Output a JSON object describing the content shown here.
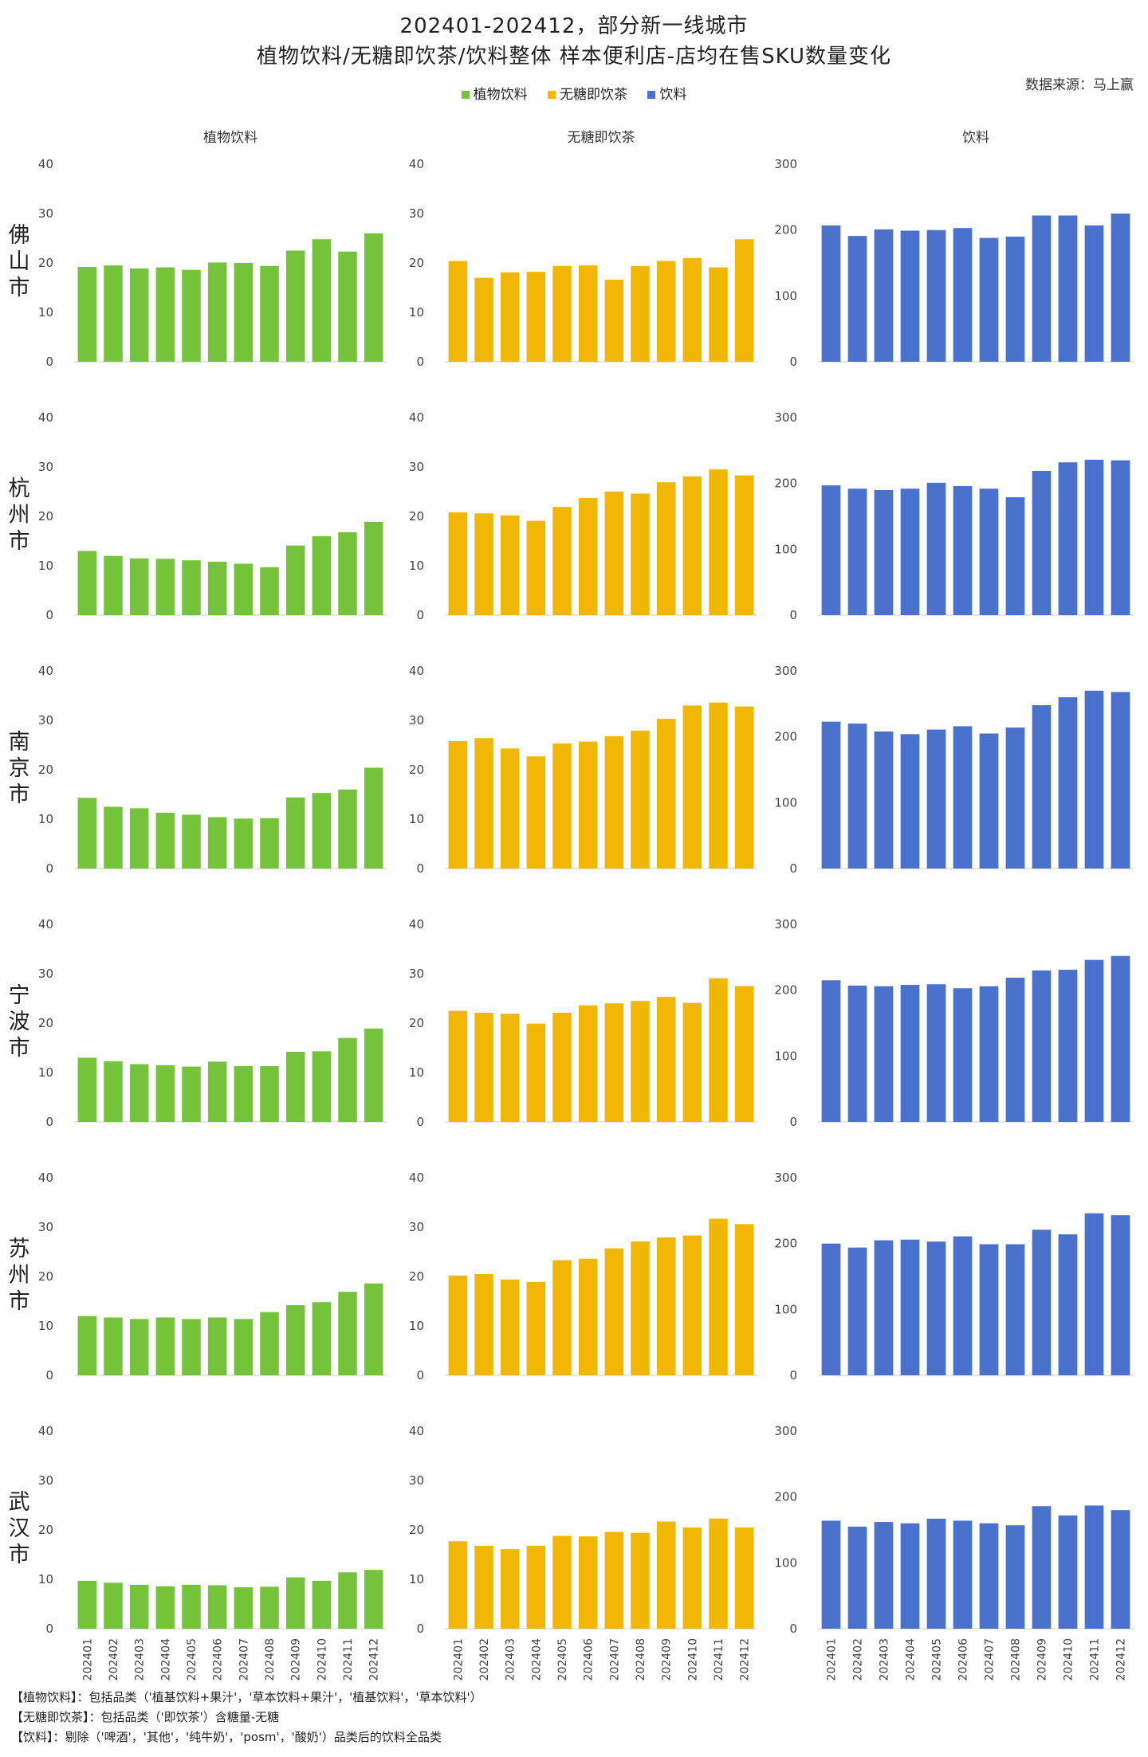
{
  "header": {
    "title_line1": "202401-202412，部分新一线城市",
    "title_line2": "植物饮料/无糖即饮茶/饮料整体 样本便利店-店均在售SKU数量变化",
    "source": "数据来源：马上赢"
  },
  "legend": [
    {
      "label": "植物饮料",
      "color": "#74C33B"
    },
    {
      "label": "无糖即饮茶",
      "color": "#F2B705"
    },
    {
      "label": "饮料",
      "color": "#4A72CC"
    }
  ],
  "notes": [
    "【植物饮料】：包括品类（'植基饮料+果汁'，'草本饮料+果汁'，'植基饮料'，'草本饮料'）",
    "【无糖即饮茶】：包括品类（'即饮茶'）含糖量-无糖",
    "【饮料】：剔除（'啤酒'，'其他'，'纯牛奶'，'posm'，'酸奶'）品类后的饮料全品类"
  ],
  "chart_data": {
    "type": "bar",
    "layout": "small-multiples grid: rows = cities, columns = categories",
    "grid": false,
    "categories": [
      "202401",
      "202402",
      "202403",
      "202404",
      "202405",
      "202406",
      "202407",
      "202408",
      "202409",
      "202410",
      "202411",
      "202412"
    ],
    "columns": [
      {
        "title": "植物饮料",
        "color": "#74C33B",
        "ylim": [
          0,
          40
        ],
        "yticks": [
          0,
          10,
          20,
          30,
          40
        ]
      },
      {
        "title": "无糖即饮茶",
        "color": "#F2B705",
        "ylim": [
          0,
          40
        ],
        "yticks": [
          0,
          10,
          20,
          30,
          40
        ]
      },
      {
        "title": "饮料",
        "color": "#4A72CC",
        "ylim": [
          0,
          300
        ],
        "yticks": [
          0,
          100,
          200,
          300
        ]
      }
    ],
    "rows": [
      {
        "city": "佛山市",
        "values": [
          [
            19.2,
            19.5,
            18.9,
            19.1,
            18.6,
            20.1,
            20.0,
            19.4,
            22.5,
            24.8,
            22.3,
            26.0
          ],
          [
            20.4,
            17.0,
            18.1,
            18.2,
            19.4,
            19.5,
            16.6,
            19.4,
            20.4,
            21.0,
            19.1,
            24.8
          ],
          [
            207,
            191,
            201,
            199,
            200,
            203,
            188,
            190,
            222,
            222,
            207,
            225
          ]
        ]
      },
      {
        "city": "杭州市",
        "values": [
          [
            13.0,
            12.0,
            11.5,
            11.4,
            11.1,
            10.8,
            10.4,
            9.7,
            14.1,
            16.0,
            16.8,
            18.9
          ],
          [
            20.8,
            20.6,
            20.2,
            19.1,
            21.9,
            23.7,
            25.0,
            24.6,
            26.9,
            28.1,
            29.5,
            28.3
          ],
          [
            197,
            192,
            190,
            192,
            201,
            196,
            192,
            179,
            219,
            232,
            236,
            235
          ]
        ]
      },
      {
        "city": "南京市",
        "values": [
          [
            14.3,
            12.5,
            12.2,
            11.3,
            10.9,
            10.4,
            10.1,
            10.2,
            14.4,
            15.3,
            16.0,
            20.4
          ],
          [
            25.8,
            26.4,
            24.3,
            22.7,
            25.3,
            25.7,
            26.8,
            27.9,
            30.3,
            33.0,
            33.6,
            32.8
          ],
          [
            223,
            220,
            208,
            204,
            211,
            216,
            205,
            214,
            248,
            260,
            270,
            268
          ]
        ]
      },
      {
        "city": "宁波市",
        "values": [
          [
            13.0,
            12.3,
            11.7,
            11.5,
            11.2,
            12.2,
            11.3,
            11.3,
            14.2,
            14.3,
            17.0,
            18.9
          ],
          [
            22.5,
            22.1,
            21.9,
            19.9,
            22.1,
            23.6,
            24.0,
            24.5,
            25.3,
            24.1,
            29.1,
            27.5
          ],
          [
            215,
            207,
            206,
            208,
            209,
            203,
            206,
            219,
            230,
            231,
            246,
            252
          ]
        ]
      },
      {
        "city": "苏州市",
        "values": [
          [
            12.0,
            11.7,
            11.4,
            11.7,
            11.4,
            11.7,
            11.4,
            12.8,
            14.2,
            14.8,
            16.9,
            18.6
          ],
          [
            20.2,
            20.5,
            19.4,
            18.9,
            23.3,
            23.6,
            25.7,
            27.1,
            27.9,
            28.3,
            31.7,
            30.6
          ],
          [
            200,
            194,
            205,
            206,
            203,
            211,
            199,
            199,
            221,
            214,
            246,
            243
          ]
        ]
      },
      {
        "city": "武汉市",
        "values": [
          [
            9.7,
            9.3,
            8.9,
            8.6,
            8.9,
            8.8,
            8.4,
            8.5,
            10.4,
            9.7,
            11.4,
            11.9
          ],
          [
            17.7,
            16.8,
            16.1,
            16.8,
            18.8,
            18.7,
            19.6,
            19.4,
            21.7,
            20.5,
            22.3,
            20.5
          ],
          [
            164,
            155,
            162,
            160,
            167,
            164,
            160,
            157,
            186,
            172,
            187,
            180
          ]
        ]
      }
    ]
  }
}
